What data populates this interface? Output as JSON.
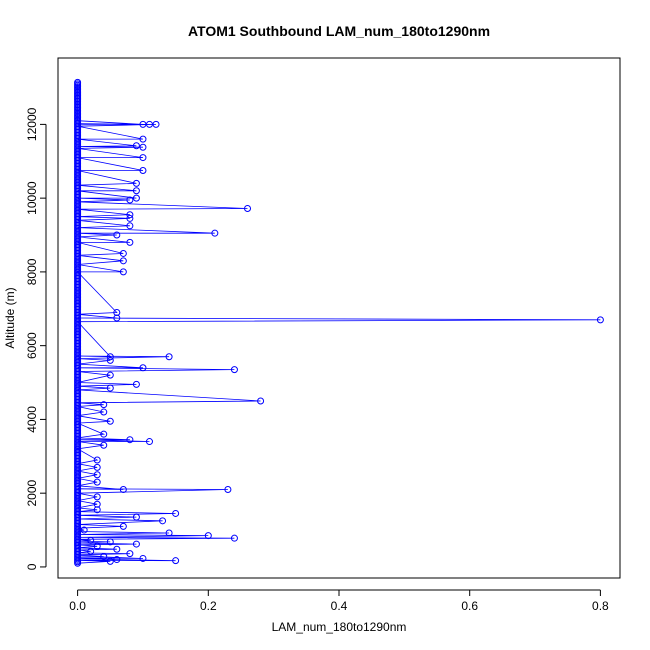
{
  "chart_data": {
    "type": "line",
    "title": "ATOM1 Southbound LAM_num_180to1290nm",
    "xlabel": "LAM_num_180to1290nm",
    "ylabel": "Altitude (m)",
    "xlim": [
      -0.03,
      0.83
    ],
    "ylim": [
      -300,
      13800
    ],
    "xticks": [
      "0.0",
      "0.2",
      "0.4",
      "0.6",
      "0.8"
    ],
    "yticks": [
      "0",
      "2000",
      "4000",
      "6000",
      "8000",
      "10000",
      "12000"
    ],
    "grid": false,
    "legend": "none",
    "series": [
      {
        "color": "#0000ff",
        "marker": "open-circle",
        "points": [
          [
            0.0,
            100
          ],
          [
            0.05,
            150
          ],
          [
            0.0,
            180
          ],
          [
            0.15,
            170
          ],
          [
            0.0,
            220
          ],
          [
            0.06,
            200
          ],
          [
            0.0,
            250
          ],
          [
            0.1,
            230
          ],
          [
            0.0,
            300
          ],
          [
            0.04,
            280
          ],
          [
            0.0,
            330
          ],
          [
            0.08,
            360
          ],
          [
            0.0,
            380
          ],
          [
            0.02,
            420
          ],
          [
            0.0,
            460
          ],
          [
            0.06,
            480
          ],
          [
            0.0,
            520
          ],
          [
            0.03,
            560
          ],
          [
            0.0,
            600
          ],
          [
            0.09,
            620
          ],
          [
            0.0,
            650
          ],
          [
            0.05,
            680
          ],
          [
            0.0,
            700
          ],
          [
            0.02,
            720
          ],
          [
            0.0,
            750
          ],
          [
            0.24,
            780
          ],
          [
            0.0,
            800
          ],
          [
            0.2,
            850
          ],
          [
            0.0,
            880
          ],
          [
            0.14,
            920
          ],
          [
            0.0,
            960
          ],
          [
            0.01,
            1000
          ],
          [
            0.0,
            1050
          ],
          [
            0.07,
            1100
          ],
          [
            0.0,
            1150
          ],
          [
            0.13,
            1250
          ],
          [
            0.0,
            1300
          ],
          [
            0.09,
            1350
          ],
          [
            0.0,
            1400
          ],
          [
            0.15,
            1450
          ],
          [
            0.0,
            1500
          ],
          [
            0.03,
            1550
          ],
          [
            0.0,
            1600
          ],
          [
            0.03,
            1700
          ],
          [
            0.0,
            1800
          ],
          [
            0.03,
            1900
          ],
          [
            0.0,
            2000
          ],
          [
            0.23,
            2100
          ],
          [
            0.0,
            2120
          ],
          [
            0.07,
            2100
          ],
          [
            0.0,
            2200
          ],
          [
            0.03,
            2300
          ],
          [
            0.0,
            2400
          ],
          [
            0.03,
            2500
          ],
          [
            0.0,
            2600
          ],
          [
            0.03,
            2700
          ],
          [
            0.0,
            2800
          ],
          [
            0.03,
            2900
          ],
          [
            0.0,
            3200
          ],
          [
            0.04,
            3300
          ],
          [
            0.0,
            3400
          ],
          [
            0.11,
            3400
          ],
          [
            0.0,
            3450
          ],
          [
            0.08,
            3450
          ],
          [
            0.0,
            3500
          ],
          [
            0.04,
            3600
          ],
          [
            0.0,
            3900
          ],
          [
            0.05,
            3950
          ],
          [
            0.0,
            4100
          ],
          [
            0.04,
            4200
          ],
          [
            0.0,
            4350
          ],
          [
            0.04,
            4400
          ],
          [
            0.0,
            4450
          ],
          [
            0.28,
            4500
          ],
          [
            0.0,
            4800
          ],
          [
            0.05,
            4850
          ],
          [
            0.0,
            4900
          ],
          [
            0.09,
            4950
          ],
          [
            0.0,
            5000
          ],
          [
            0.05,
            5200
          ],
          [
            0.0,
            5300
          ],
          [
            0.24,
            5350
          ],
          [
            0.0,
            5400
          ],
          [
            0.1,
            5400
          ],
          [
            0.0,
            5500
          ],
          [
            0.05,
            5600
          ],
          [
            0.0,
            5650
          ],
          [
            0.14,
            5700
          ],
          [
            0.0,
            5720
          ],
          [
            0.05,
            5700
          ],
          [
            0.0,
            6650
          ],
          [
            0.8,
            6700
          ],
          [
            0.0,
            6750
          ],
          [
            0.06,
            6750
          ],
          [
            0.0,
            6850
          ],
          [
            0.06,
            6900
          ],
          [
            0.0,
            8000
          ],
          [
            0.07,
            8000
          ],
          [
            0.0,
            8200
          ],
          [
            0.07,
            8300
          ],
          [
            0.0,
            8450
          ],
          [
            0.07,
            8500
          ],
          [
            0.0,
            8800
          ],
          [
            0.08,
            8800
          ],
          [
            0.0,
            8950
          ],
          [
            0.06,
            9000
          ],
          [
            0.0,
            9050
          ],
          [
            0.21,
            9050
          ],
          [
            0.0,
            9200
          ],
          [
            0.08,
            9250
          ],
          [
            0.0,
            9400
          ],
          [
            0.08,
            9450
          ],
          [
            0.0,
            9500
          ],
          [
            0.08,
            9550
          ],
          [
            0.0,
            9700
          ],
          [
            0.26,
            9720
          ],
          [
            0.0,
            9900
          ],
          [
            0.08,
            9950
          ],
          [
            0.0,
            10000
          ],
          [
            0.09,
            10000
          ],
          [
            0.0,
            10200
          ],
          [
            0.09,
            10200
          ],
          [
            0.0,
            10350
          ],
          [
            0.09,
            10400
          ],
          [
            0.0,
            10750
          ],
          [
            0.1,
            10750
          ],
          [
            0.0,
            11100
          ],
          [
            0.1,
            11100
          ],
          [
            0.0,
            11350
          ],
          [
            0.1,
            11380
          ],
          [
            0.0,
            11400
          ],
          [
            0.09,
            11420
          ],
          [
            0.0,
            11600
          ],
          [
            0.1,
            11600
          ],
          [
            0.0,
            11950
          ],
          [
            0.12,
            12000
          ],
          [
            0.0,
            12000
          ],
          [
            0.11,
            12000
          ],
          [
            0.0,
            12020
          ],
          [
            0.1,
            12000
          ],
          [
            0.0,
            12100
          ],
          [
            0.0,
            12300
          ],
          [
            0.0,
            12500
          ],
          [
            0.0,
            12700
          ],
          [
            0.0,
            12900
          ],
          [
            0.0,
            13100
          ]
        ]
      }
    ]
  }
}
